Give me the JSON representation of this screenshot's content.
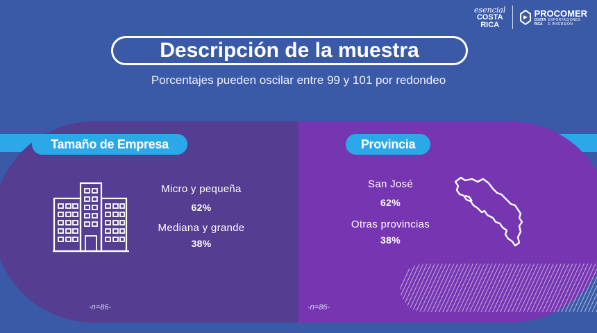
{
  "logos": {
    "esencial_script": "esencial",
    "esencial_line1": "COSTA",
    "esencial_line2": "RICA",
    "procomer_name": "PROCOMER",
    "procomer_line1": "COSTA",
    "procomer_line2": "RICA",
    "procomer_sub1": "EXPORTACIONES",
    "procomer_sub2": "E INVERSIÓN"
  },
  "title": "Descripción de la muestra",
  "subtitle": "Porcentajes pueden oscilar entre 99 y 101 por redondeo",
  "left": {
    "label": "Tamaño de Empresa",
    "icon": "building-icon",
    "items": [
      {
        "name": "Micro y pequeña",
        "value": "62%"
      },
      {
        "name": "Mediana y grande",
        "value": "38%"
      }
    ],
    "note": "-n=86-"
  },
  "right": {
    "label": "Provincia",
    "icon": "costa-rica-map-icon",
    "items": [
      {
        "name": "San José",
        "value": "62%"
      },
      {
        "name": "Otras provincias",
        "value": "38%"
      }
    ],
    "note": "-n=86-"
  },
  "colors": {
    "background": "#3a5aa8",
    "left_panel": "#553d91",
    "right_panel": "#7636b2",
    "accent_bar": "#2aa8e8"
  }
}
